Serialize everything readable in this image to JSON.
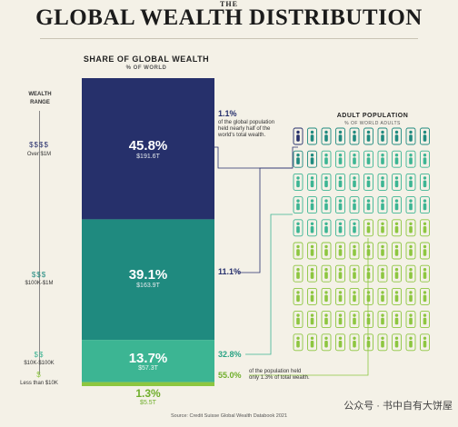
{
  "header": {
    "kicker": "THE",
    "title": "GLOBAL WEALTH DISTRIBUTION"
  },
  "column": {
    "title": "SHARE OF GLOBAL WEALTH",
    "subtitle": "% OF WORLD"
  },
  "wealth_range": {
    "title_line1": "WEALTH",
    "title_line2": "RANGE",
    "tiers": [
      {
        "coins": "$$$$",
        "label": "Over $1M",
        "color": "#27306d"
      },
      {
        "coins": "$$$",
        "label": "$100K-$1M",
        "color": "#1f8a80"
      },
      {
        "coins": "$$",
        "label": "$10K-$100K",
        "color": "#3cb493"
      },
      {
        "coins": "$",
        "label": "Less than $10K",
        "color": "#8cc63f"
      }
    ]
  },
  "notes": {
    "top_pct": "1.1%",
    "top_line1": "of the global population",
    "top_line2": "held nearly half of the",
    "top_line3": "world's total wealth.",
    "mid_pct": "11.1%",
    "low_pct": "32.8%",
    "bottom_pct": "55.0%",
    "bottom_line1": "of the population held",
    "bottom_line2": "only 1.3% of total wealth."
  },
  "adult_population": {
    "title": "ADULT POPULATION",
    "subtitle": "% OF WORLD ADULTS"
  },
  "chart_data": {
    "type": "bar",
    "title": "GLOBAL WEALTH DISTRIBUTION",
    "categories": [
      "Over $1M",
      "$100K-$1M",
      "$10K-$100K",
      "Less than $10K"
    ],
    "series": [
      {
        "name": "SHARE OF GLOBAL WEALTH",
        "values": [
          45.8,
          39.1,
          13.7,
          1.3
        ],
        "labels": [
          "45.8%",
          "39.1%",
          "13.7%",
          "1.3%"
        ],
        "amounts": [
          "$191.6T",
          "$163.9T",
          "$57.3T",
          "$5.5T"
        ]
      },
      {
        "name": "ADULT POPULATION",
        "values": [
          1.1,
          11.1,
          32.8,
          55.0
        ],
        "labels": [
          "1.1%",
          "11.1%",
          "32.8%",
          "55.0%"
        ]
      }
    ],
    "colors": [
      "#26306b",
      "#1f8a7f",
      "#3cb593",
      "#8dc640"
    ]
  },
  "source": "Source: Credit Suisse Global Wealth Databook 2021",
  "watermark": "公众号 · 书中自有大饼屋"
}
